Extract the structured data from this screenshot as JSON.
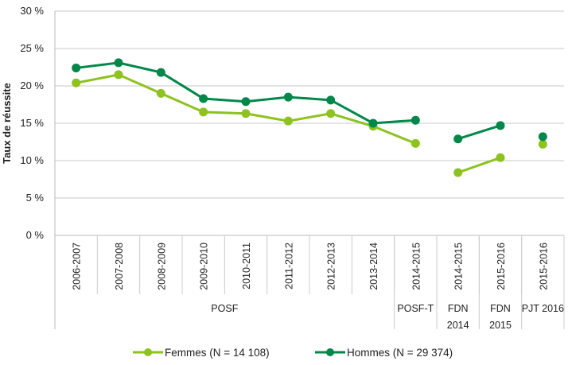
{
  "chart_data": {
    "type": "line",
    "title": "",
    "ylabel": "Taux de réussite",
    "xlabel": "",
    "ylim": [
      0,
      30
    ],
    "yticks": [
      "0 %",
      "5 %",
      "10 %",
      "15 %",
      "20 %",
      "25 %",
      "30 %"
    ],
    "categories": [
      "2006-2007",
      "2007-2008",
      "2008-2009",
      "2009-2010",
      "2010-2011",
      "2011-2012",
      "2012-2013",
      "2013-2014",
      "2014-2015",
      "2014-2015",
      "2015-2016",
      "2015-2016"
    ],
    "groups": [
      {
        "label": "POSF",
        "span": 8
      },
      {
        "label": "POSF-T",
        "span": 1
      },
      {
        "label": "FDN 2014",
        "span": 1
      },
      {
        "label": "FDN 2015",
        "span": 1
      },
      {
        "label": "PJT 2016",
        "span": 1
      }
    ],
    "segments": [
      [
        0,
        8
      ],
      [
        9,
        10
      ],
      [
        11,
        11
      ]
    ],
    "grid": true,
    "legend_position": "bottom",
    "series": [
      {
        "name": "Femmes (N = 14 108)",
        "color": "#8dc21f",
        "values": [
          20.4,
          21.5,
          19.0,
          16.5,
          16.3,
          15.3,
          16.3,
          14.6,
          12.3,
          8.4,
          10.4,
          12.2
        ]
      },
      {
        "name": "Hommes (N = 29 374)",
        "color": "#00874a",
        "values": [
          22.4,
          23.1,
          21.8,
          18.3,
          17.9,
          18.5,
          18.1,
          15.0,
          15.4,
          12.9,
          14.7,
          13.2
        ]
      }
    ]
  }
}
